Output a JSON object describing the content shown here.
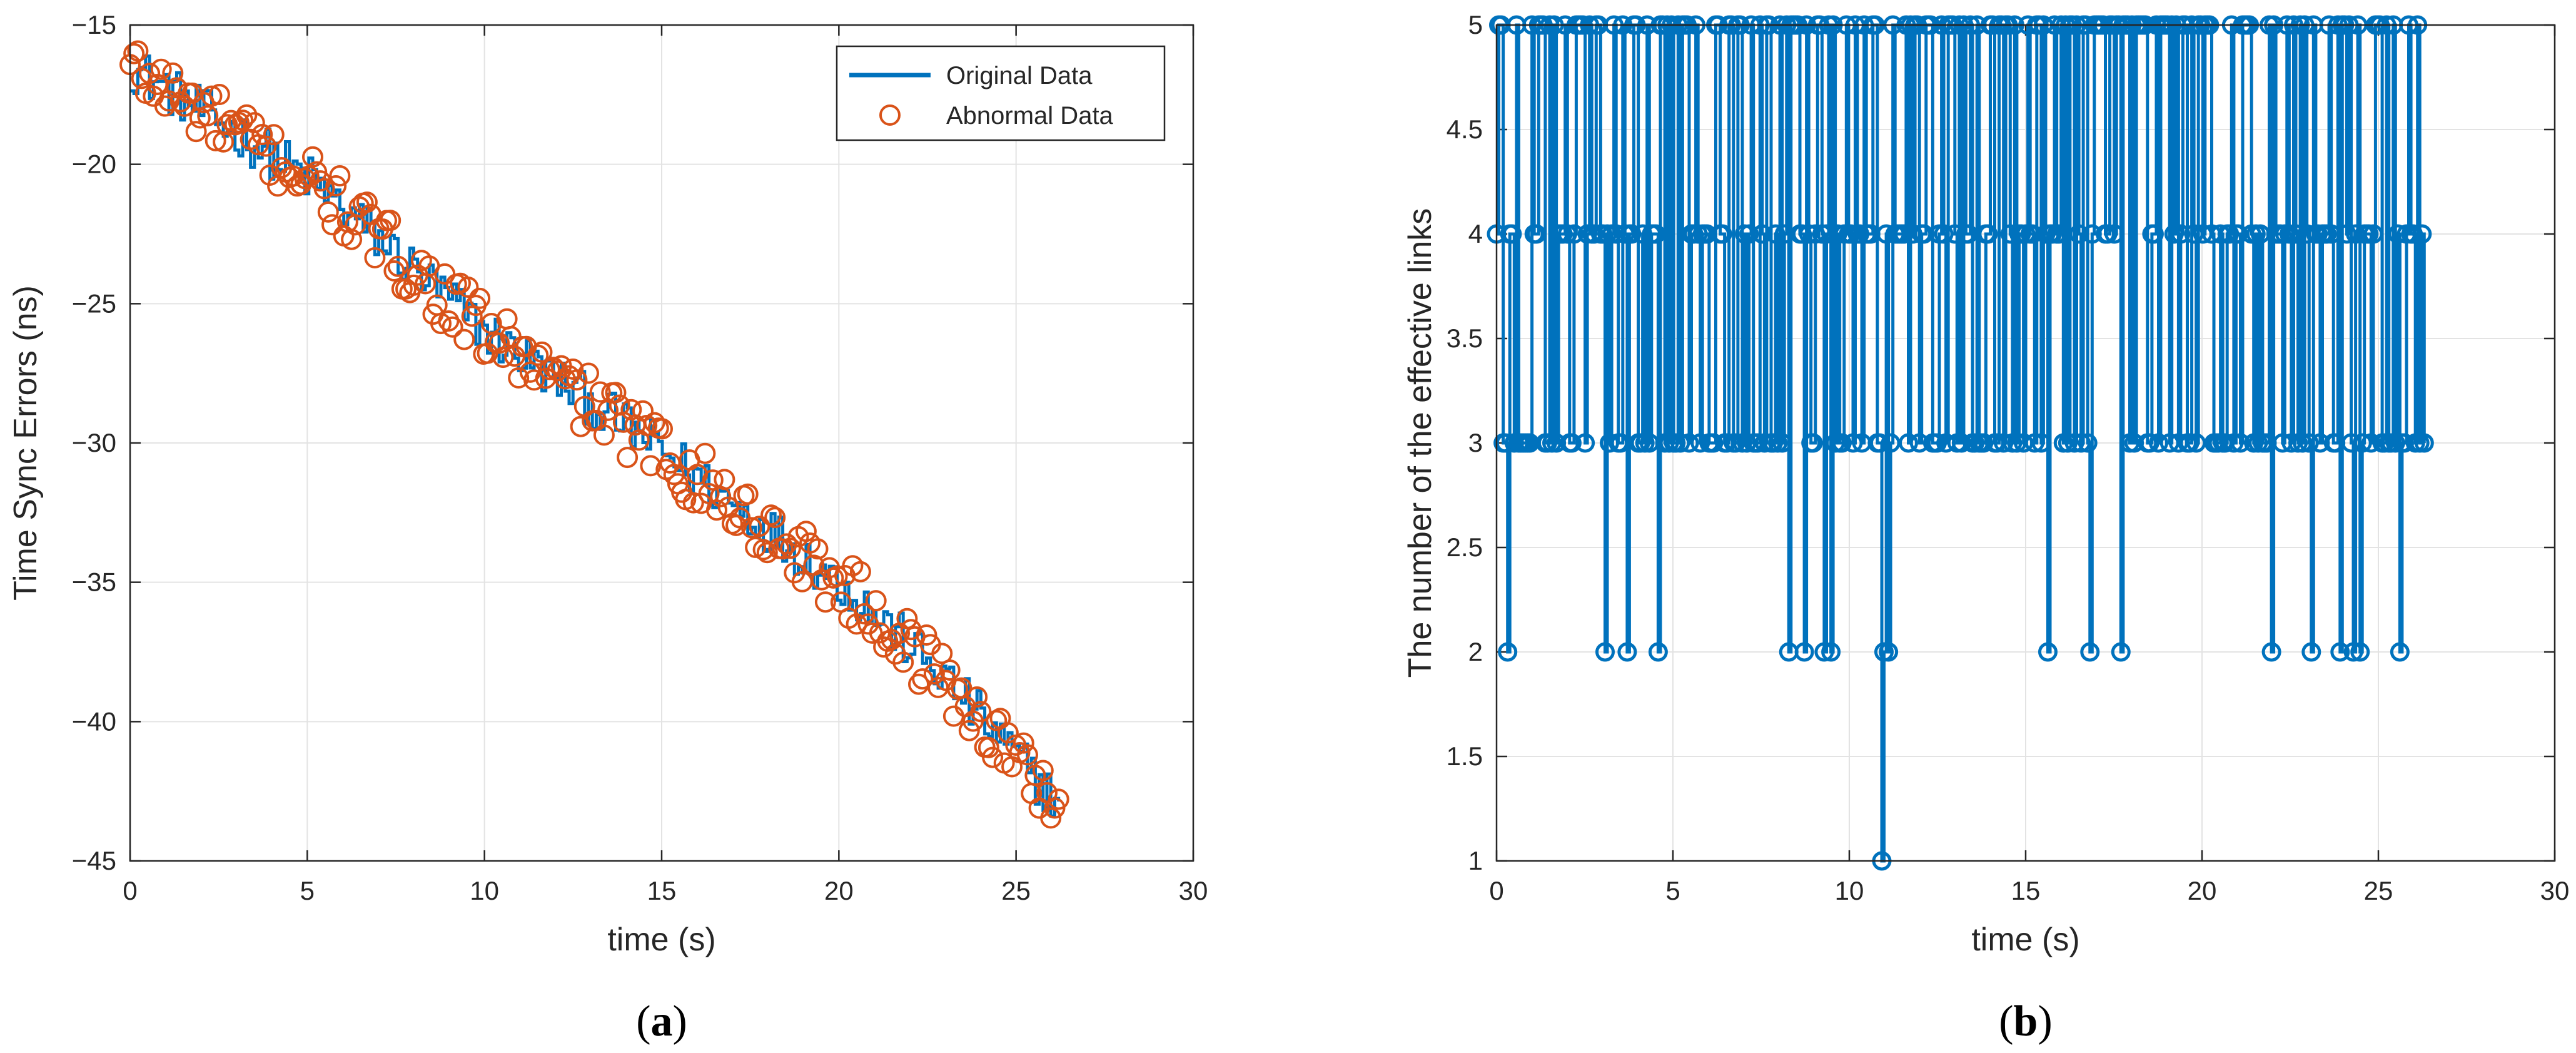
{
  "chart_data": [
    {
      "type": "line",
      "panel_label": "(a)",
      "panel_letter": "a",
      "title": "",
      "xlabel": "time (s)",
      "ylabel": "Time Sync Errors (ns)",
      "xlim": [
        0,
        30
      ],
      "ylim": [
        -45,
        -15
      ],
      "xticks": [
        0,
        5,
        10,
        15,
        20,
        25,
        30
      ],
      "yticks": [
        -45,
        -40,
        -35,
        -30,
        -25,
        -20,
        -15
      ],
      "xtick_labels": [
        "0",
        "5",
        "10",
        "15",
        "20",
        "25",
        "30"
      ],
      "ytick_labels": [
        "−45",
        "−40",
        "−35",
        "−30",
        "−25",
        "−20",
        "−15"
      ],
      "grid": true,
      "legend": {
        "position": "top-right",
        "entries": [
          {
            "label": "Original Data",
            "marker": "line",
            "color": "#0072BD"
          },
          {
            "label": "Abnormal Data",
            "marker": "circle",
            "color": "#D95319"
          }
        ]
      },
      "series": [
        {
          "name": "Original Data",
          "style": "line",
          "color": "#0072BD",
          "trend": {
            "x": [
              0,
              5,
              10,
              15,
              20,
              23,
              26.2
            ],
            "y": [
              -16.5,
              -20.5,
              -26.0,
              -30.3,
              -35.0,
              -38.5,
              -43.0
            ]
          },
          "spread": 0.9,
          "n_points": 240
        },
        {
          "name": "Abnormal Data",
          "style": "scatter",
          "marker": "circle",
          "color": "#D95319",
          "trend": {
            "x": [
              0,
              5,
              10,
              15,
              20,
              23,
              26.2
            ],
            "y": [
              -16.5,
              -20.5,
              -26.0,
              -30.3,
              -35.0,
              -38.5,
              -43.0
            ]
          },
          "spread": 1.1,
          "n_points": 240
        }
      ]
    },
    {
      "type": "line",
      "panel_label": "(b)",
      "panel_letter": "b",
      "title": "",
      "xlabel": "time (s)",
      "ylabel": "The number of the effective links",
      "xlim": [
        0,
        30
      ],
      "ylim": [
        1,
        5
      ],
      "xticks": [
        0,
        5,
        10,
        15,
        20,
        25,
        30
      ],
      "yticks": [
        1,
        1.5,
        2,
        2.5,
        3,
        3.5,
        4,
        4.5,
        5
      ],
      "xtick_labels": [
        "0",
        "5",
        "10",
        "15",
        "20",
        "25",
        "30"
      ],
      "ytick_labels": [
        "1",
        "1.5",
        "2",
        "2.5",
        "3",
        "3.5",
        "4",
        "4.5",
        "5"
      ],
      "grid": true,
      "series": [
        {
          "name": "Effective links",
          "style": "stairs-with-circles",
          "color": "#0072BD",
          "x_range": [
            0,
            26.3
          ],
          "levels": [
            3,
            4,
            5
          ],
          "n_points": 420,
          "drops_to_2_at": [
            0.3,
            3.1,
            3.7,
            4.6,
            8.3,
            8.7,
            9.3,
            9.5,
            11.0,
            11.1,
            15.6,
            16.8,
            17.7,
            22.0,
            23.1,
            23.9,
            24.3,
            24.5,
            25.6
          ],
          "drop_to_1_at": [
            10.9
          ]
        }
      ]
    }
  ]
}
